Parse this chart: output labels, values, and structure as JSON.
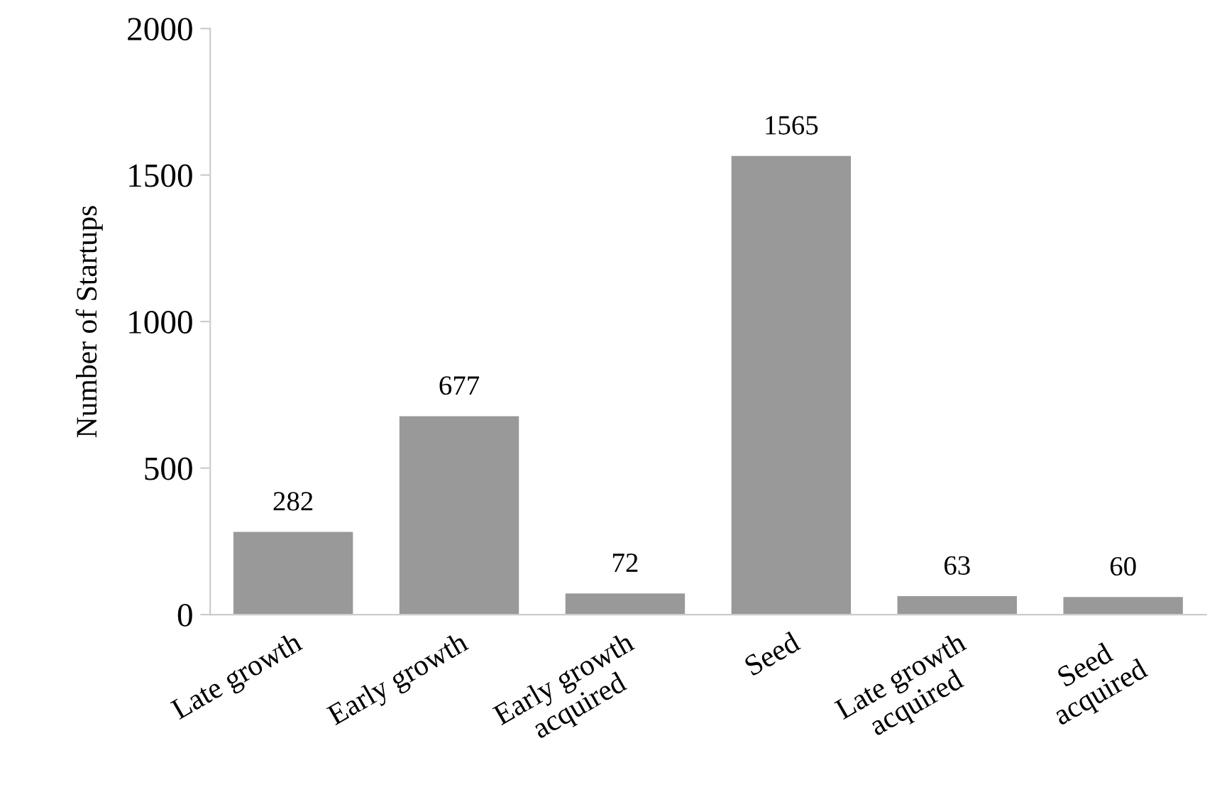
{
  "chart_data": {
    "type": "bar",
    "ylabel": "Number of Startups",
    "categories": [
      "Late growth",
      "Early growth",
      "Early growth\nacquired",
      "Seed",
      "Late growth\nacquired",
      "Seed\nacquired"
    ],
    "values": [
      282,
      677,
      72,
      1565,
      63,
      60
    ],
    "color": "#999999",
    "ylim": [
      0,
      2000
    ],
    "yticks": [
      0,
      500,
      1000,
      1500,
      2000
    ],
    "data_labels": true,
    "grid": false,
    "legend": false
  }
}
